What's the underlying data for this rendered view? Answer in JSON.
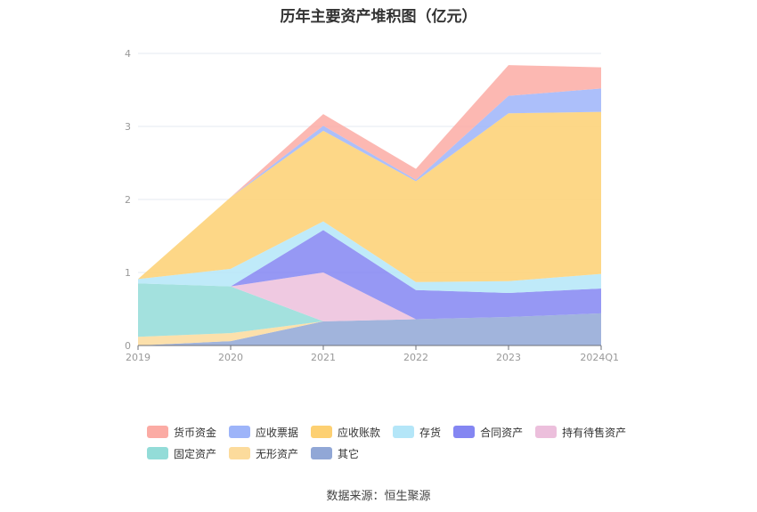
{
  "title": "历年主要资产堆积图（亿元）",
  "source": "数据来源：恒生聚源",
  "chart_data": {
    "type": "area",
    "stacked": true,
    "title": "历年主要资产堆积图（亿元）",
    "xlabel": "",
    "ylabel": "",
    "x": [
      "2019",
      "2020",
      "2021",
      "2022",
      "2023",
      "2024Q1"
    ],
    "ylim": [
      0,
      4
    ],
    "yticks": [
      0,
      1,
      2,
      3,
      4
    ],
    "grid": true,
    "legend_position": "bottom",
    "series": [
      {
        "name": "其它",
        "color": "#91a7d6",
        "values": [
          0.0,
          0.06,
          0.33,
          0.36,
          0.39,
          0.44
        ]
      },
      {
        "name": "无形资产",
        "color": "#fcdb9c",
        "values": [
          0.12,
          0.11,
          0.0,
          0.0,
          0.0,
          0.0
        ]
      },
      {
        "name": "固定资产",
        "color": "#93dcd8",
        "values": [
          0.73,
          0.64,
          0.0,
          0.0,
          0.0,
          0.0
        ]
      },
      {
        "name": "持有待售资产",
        "color": "#ecbfdc",
        "values": [
          0.0,
          0.0,
          0.67,
          0.0,
          0.0,
          0.0
        ]
      },
      {
        "name": "合同资产",
        "color": "#8486f2",
        "values": [
          0.0,
          0.0,
          0.58,
          0.4,
          0.33,
          0.34
        ]
      },
      {
        "name": "存货",
        "color": "#b4e6f8",
        "values": [
          0.06,
          0.24,
          0.12,
          0.11,
          0.16,
          0.2
        ]
      },
      {
        "name": "应收账款",
        "color": "#fdd072",
        "values": [
          0.0,
          0.98,
          1.24,
          1.38,
          2.3,
          2.22
        ]
      },
      {
        "name": "应收票据",
        "color": "#9db4f9",
        "values": [
          0.0,
          0.0,
          0.07,
          0.02,
          0.24,
          0.32
        ]
      },
      {
        "name": "货币资金",
        "color": "#fbaba4",
        "values": [
          0.0,
          0.0,
          0.16,
          0.15,
          0.42,
          0.29
        ]
      }
    ],
    "legend": [
      [
        "货币资金",
        "应收票据",
        "应收账款",
        "存货",
        "合同资产",
        "持有待售资产"
      ],
      [
        "固定资产",
        "无形资产",
        "其它"
      ]
    ]
  }
}
